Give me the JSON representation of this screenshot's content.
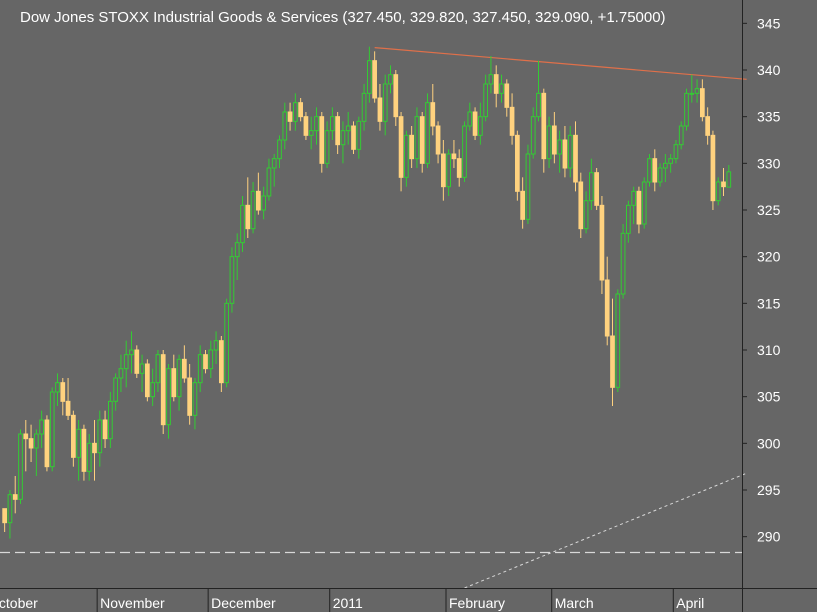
{
  "chart_data": {
    "type": "candlestick",
    "title": "Dow Jones STOXX Industrial Goods & Services (327.450, 329.820, 327.450, 329.090, +1.75000)",
    "ylim": [
      284.5,
      347.5
    ],
    "yticks": [
      290,
      295,
      300,
      305,
      310,
      315,
      320,
      325,
      330,
      335,
      340,
      345
    ],
    "xlabels": [
      "October",
      "November",
      "December",
      "2011",
      "February",
      "March",
      "April"
    ],
    "month_start_index": [
      0,
      18,
      39,
      62,
      84,
      104,
      127
    ],
    "num_bars": 140,
    "grid": false,
    "colors": {
      "background": "#666666",
      "up": "#33cc33",
      "down": "#ffd27f",
      "resistance": "#e0704a",
      "support": "#d8d8d8",
      "axis": "#222222",
      "text": "#ffffff"
    },
    "resistance_line": {
      "from": [
        70,
        342.4
      ],
      "to": [
        140,
        339.0
      ]
    },
    "support_line": {
      "from": [
        87,
        284.5
      ],
      "to": [
        140,
        296.8
      ]
    },
    "horizontal_line": {
      "y": 288.3
    },
    "candles": [
      [
        293.0,
        293.0,
        290.5,
        291.5
      ],
      [
        291.5,
        295.0,
        289.8,
        294.5
      ],
      [
        294.5,
        296.5,
        292.5,
        294.0
      ],
      [
        294.0,
        301.5,
        293.5,
        301.0
      ],
      [
        301.0,
        302.5,
        297.0,
        300.5
      ],
      [
        300.5,
        302.0,
        298.0,
        299.5
      ],
      [
        299.5,
        301.5,
        296.5,
        301.0
      ],
      [
        301.0,
        303.5,
        299.5,
        302.5
      ],
      [
        302.5,
        303.0,
        297.0,
        297.5
      ],
      [
        297.5,
        306.0,
        297.0,
        305.5
      ],
      [
        305.5,
        307.5,
        304.0,
        306.5
      ],
      [
        306.5,
        307.0,
        303.0,
        304.5
      ],
      [
        304.5,
        307.0,
        302.5,
        303.0
      ],
      [
        303.0,
        303.5,
        297.5,
        298.5
      ],
      [
        298.5,
        302.5,
        296.0,
        301.5
      ],
      [
        301.5,
        302.0,
        296.0,
        297.0
      ],
      [
        297.0,
        301.0,
        296.0,
        300.0
      ],
      [
        300.0,
        302.5,
        296.0,
        299.0
      ],
      [
        299.0,
        303.5,
        297.5,
        302.5
      ],
      [
        302.5,
        303.5,
        299.5,
        300.5
      ],
      [
        300.5,
        305.5,
        299.5,
        304.5
      ],
      [
        304.5,
        307.5,
        303.5,
        307.0
      ],
      [
        307.0,
        309.5,
        305.5,
        308.0
      ],
      [
        308.0,
        311.0,
        306.0,
        309.5
      ],
      [
        309.5,
        312.0,
        307.5,
        310.0
      ],
      [
        310.0,
        310.5,
        307.0,
        307.5
      ],
      [
        307.5,
        309.5,
        305.5,
        308.5
      ],
      [
        308.5,
        309.0,
        304.5,
        305.0
      ],
      [
        305.0,
        308.0,
        304.0,
        306.5
      ],
      [
        306.5,
        310.0,
        305.5,
        309.5
      ],
      [
        309.5,
        310.0,
        301.0,
        302.0
      ],
      [
        302.0,
        308.5,
        300.5,
        308.0
      ],
      [
        308.0,
        309.5,
        304.5,
        305.0
      ],
      [
        305.0,
        309.5,
        303.5,
        309.0
      ],
      [
        309.0,
        310.5,
        306.5,
        307.0
      ],
      [
        307.0,
        308.5,
        302.0,
        303.0
      ],
      [
        303.0,
        307.0,
        301.5,
        306.5
      ],
      [
        306.5,
        310.5,
        305.5,
        309.5
      ],
      [
        309.5,
        310.0,
        307.5,
        308.0
      ],
      [
        308.0,
        311.0,
        307.0,
        310.0
      ],
      [
        310.0,
        312.0,
        308.5,
        311.0
      ],
      [
        311.0,
        311.5,
        305.5,
        306.5
      ],
      [
        306.5,
        315.5,
        306.0,
        315.0
      ],
      [
        315.0,
        321.0,
        314.0,
        320.0
      ],
      [
        320.0,
        322.5,
        317.5,
        321.5
      ],
      [
        321.5,
        326.5,
        320.5,
        325.5
      ],
      [
        325.5,
        328.5,
        322.0,
        323.0
      ],
      [
        323.0,
        328.0,
        322.5,
        327.0
      ],
      [
        327.0,
        329.0,
        324.5,
        325.0
      ],
      [
        325.0,
        327.5,
        324.0,
        326.5
      ],
      [
        326.5,
        330.5,
        326.0,
        329.5
      ],
      [
        329.5,
        331.0,
        327.5,
        330.5
      ],
      [
        330.5,
        333.0,
        329.5,
        332.5
      ],
      [
        332.5,
        336.5,
        331.5,
        335.5
      ],
      [
        335.5,
        336.5,
        333.5,
        334.5
      ],
      [
        334.5,
        337.5,
        333.5,
        336.5
      ],
      [
        336.5,
        337.0,
        334.5,
        335.0
      ],
      [
        335.0,
        335.5,
        332.5,
        333.0
      ],
      [
        333.0,
        335.0,
        331.5,
        333.5
      ],
      [
        333.5,
        336.0,
        332.0,
        335.0
      ],
      [
        335.0,
        335.5,
        329.0,
        330.0
      ],
      [
        330.0,
        334.5,
        329.5,
        333.5
      ],
      [
        333.5,
        336.0,
        332.5,
        335.0
      ],
      [
        335.0,
        335.5,
        331.0,
        332.0
      ],
      [
        332.0,
        334.5,
        330.0,
        333.5
      ],
      [
        333.5,
        335.5,
        332.0,
        334.0
      ],
      [
        334.0,
        334.5,
        331.0,
        331.5
      ],
      [
        331.5,
        335.0,
        330.5,
        334.5
      ],
      [
        334.5,
        338.5,
        333.5,
        337.5
      ],
      [
        337.5,
        342.5,
        336.5,
        341.0
      ],
      [
        341.0,
        342.0,
        336.5,
        337.0
      ],
      [
        337.0,
        338.5,
        333.5,
        334.5
      ],
      [
        334.5,
        339.5,
        333.0,
        338.5
      ],
      [
        338.5,
        340.5,
        337.5,
        339.5
      ],
      [
        339.5,
        340.0,
        334.0,
        335.0
      ],
      [
        335.0,
        335.5,
        327.0,
        328.5
      ],
      [
        328.5,
        333.5,
        327.5,
        333.0
      ],
      [
        333.0,
        334.0,
        329.5,
        330.5
      ],
      [
        330.5,
        336.0,
        329.5,
        335.0
      ],
      [
        335.0,
        335.5,
        329.0,
        330.0
      ],
      [
        330.0,
        337.5,
        329.5,
        336.5
      ],
      [
        336.5,
        338.5,
        333.0,
        334.0
      ],
      [
        334.0,
        334.5,
        330.0,
        331.0
      ],
      [
        331.0,
        332.5,
        326.0,
        327.5
      ],
      [
        327.5,
        331.5,
        326.5,
        331.0
      ],
      [
        331.0,
        332.5,
        329.5,
        330.5
      ],
      [
        330.5,
        331.5,
        327.5,
        328.5
      ],
      [
        328.5,
        334.5,
        328.0,
        334.0
      ],
      [
        334.0,
        336.5,
        333.5,
        335.5
      ],
      [
        335.5,
        336.0,
        332.5,
        333.0
      ],
      [
        333.0,
        336.5,
        332.0,
        335.0
      ],
      [
        335.0,
        339.5,
        334.5,
        338.5
      ],
      [
        338.5,
        341.5,
        337.5,
        339.5
      ],
      [
        339.5,
        340.5,
        336.0,
        337.5
      ],
      [
        337.5,
        339.5,
        336.5,
        338.5
      ],
      [
        338.5,
        339.0,
        335.0,
        336.0
      ],
      [
        336.0,
        337.5,
        332.0,
        333.0
      ],
      [
        333.0,
        333.5,
        326.0,
        327.0
      ],
      [
        327.0,
        328.5,
        323.0,
        324.0
      ],
      [
        324.0,
        332.0,
        323.5,
        331.0
      ],
      [
        331.0,
        336.0,
        330.5,
        335.0
      ],
      [
        335.0,
        341.0,
        334.5,
        337.5
      ],
      [
        337.5,
        338.0,
        329.0,
        330.5
      ],
      [
        330.5,
        335.0,
        329.5,
        334.0
      ],
      [
        334.0,
        335.5,
        330.0,
        331.0
      ],
      [
        331.0,
        333.5,
        329.0,
        332.5
      ],
      [
        332.5,
        334.0,
        328.5,
        329.5
      ],
      [
        329.5,
        334.0,
        328.5,
        333.0
      ],
      [
        333.0,
        334.5,
        327.0,
        328.0
      ],
      [
        328.0,
        329.0,
        322.0,
        323.0
      ],
      [
        323.0,
        327.0,
        322.5,
        326.0
      ],
      [
        326.0,
        330.5,
        325.0,
        329.0
      ],
      [
        329.0,
        329.5,
        325.0,
        325.5
      ],
      [
        325.5,
        326.5,
        316.0,
        317.5
      ],
      [
        317.5,
        320.0,
        310.5,
        311.5
      ],
      [
        311.5,
        315.5,
        304.0,
        306.0
      ],
      [
        306.0,
        316.5,
        305.5,
        316.0
      ],
      [
        316.0,
        323.5,
        315.5,
        322.5
      ],
      [
        322.5,
        326.0,
        321.5,
        325.5
      ],
      [
        325.5,
        327.5,
        323.5,
        327.0
      ],
      [
        327.0,
        327.5,
        322.5,
        323.5
      ],
      [
        323.5,
        328.5,
        323.0,
        328.0
      ],
      [
        328.0,
        331.0,
        327.5,
        330.5
      ],
      [
        330.5,
        331.5,
        327.0,
        328.0
      ],
      [
        328.0,
        330.0,
        327.5,
        329.5
      ],
      [
        329.5,
        331.0,
        328.0,
        330.0
      ],
      [
        330.0,
        331.0,
        329.0,
        330.5
      ],
      [
        330.5,
        332.5,
        330.0,
        332.0
      ],
      [
        332.0,
        334.5,
        331.5,
        334.0
      ],
      [
        334.0,
        338.0,
        333.5,
        337.5
      ],
      [
        337.5,
        339.5,
        336.5,
        337.5
      ],
      [
        337.5,
        339.0,
        336.5,
        338.0
      ],
      [
        338.0,
        339.0,
        334.5,
        335.0
      ],
      [
        335.0,
        336.0,
        332.0,
        333.0
      ],
      [
        333.0,
        333.5,
        325.0,
        326.0
      ],
      [
        326.0,
        328.5,
        325.5,
        328.0
      ],
      [
        328.0,
        329.5,
        326.5,
        327.5
      ],
      [
        327.45,
        329.82,
        327.45,
        329.09
      ]
    ]
  }
}
